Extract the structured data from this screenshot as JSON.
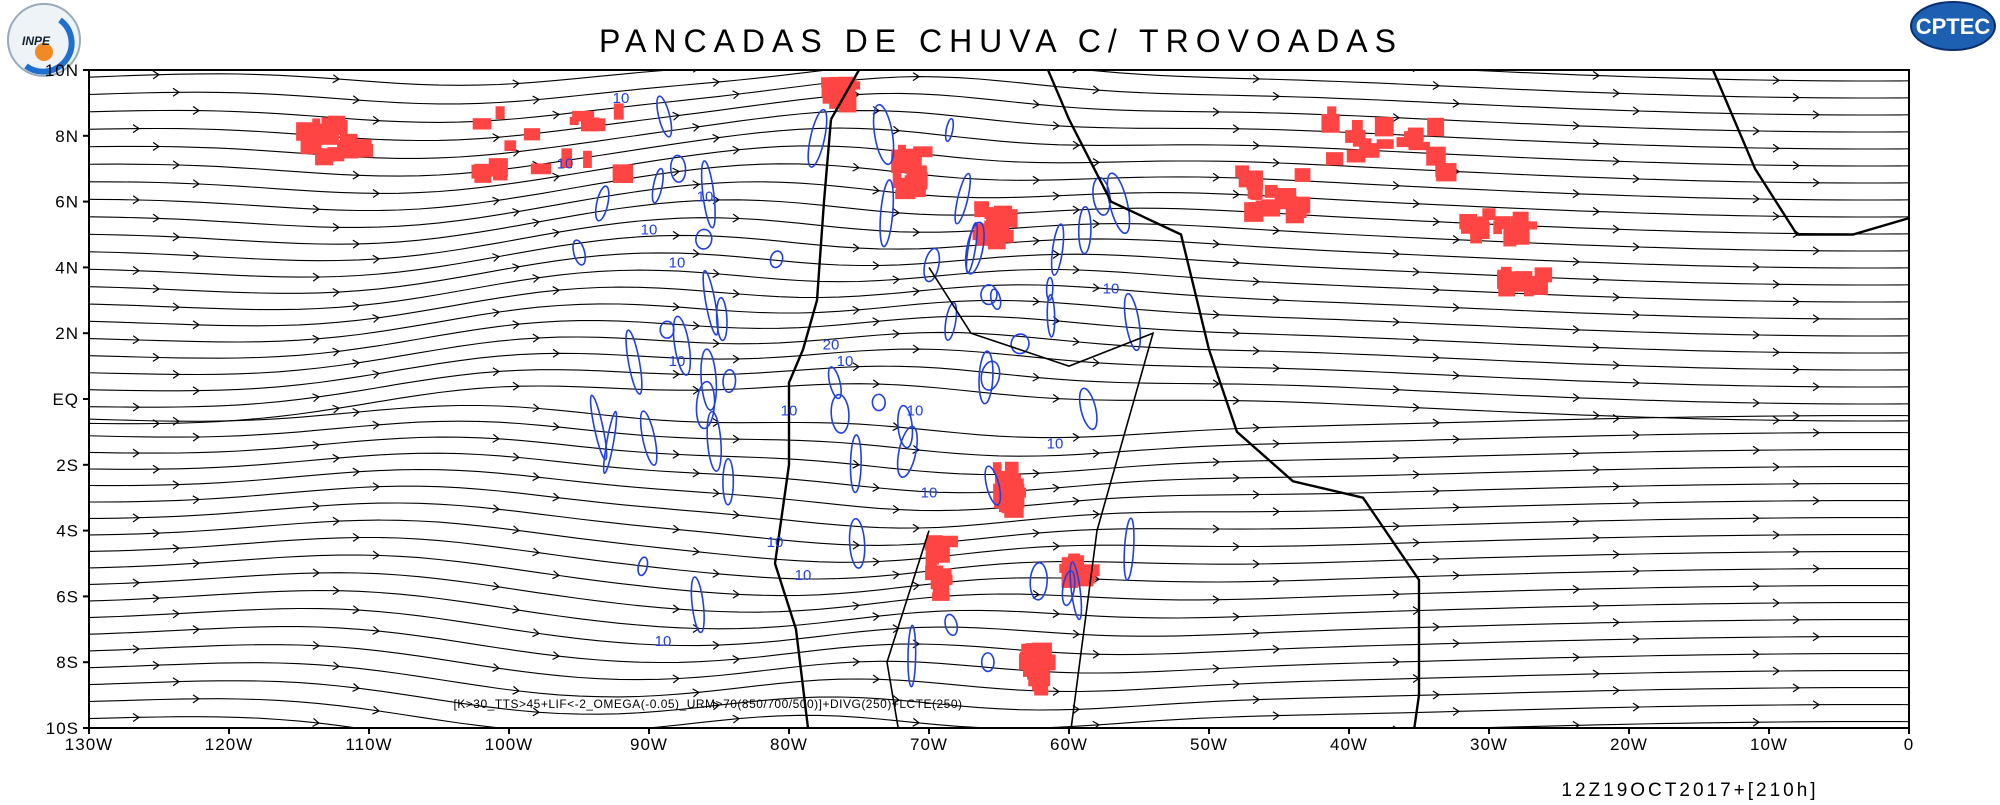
{
  "header": {
    "title": "PANCADAS DE CHUVA C/ TROVOADAS",
    "logo_left": "INPE",
    "logo_right": "CPTEC"
  },
  "map": {
    "lon_labels": [
      "130W",
      "120W",
      "110W",
      "100W",
      "90W",
      "80W",
      "70W",
      "60W",
      "50W",
      "40W",
      "30W",
      "20W",
      "10W",
      "0"
    ],
    "lat_labels": [
      "10N",
      "8N",
      "6N",
      "4N",
      "2N",
      "EQ",
      "2S",
      "4S",
      "6S",
      "8S",
      "10S"
    ],
    "contour_labels": [
      "10",
      "10",
      "10",
      "10",
      "10",
      "10",
      "10",
      "20",
      "10",
      "10",
      "10",
      "10",
      "10",
      "10",
      "10",
      "10"
    ],
    "formula": "[K>30_TTS>45+LIF<-2_OMEGA(-0.05)_URM>70(850/700/500)]+DIVG(250)+LCTE(250)",
    "timestamp": "12Z19OCT2017+[210h]"
  }
}
